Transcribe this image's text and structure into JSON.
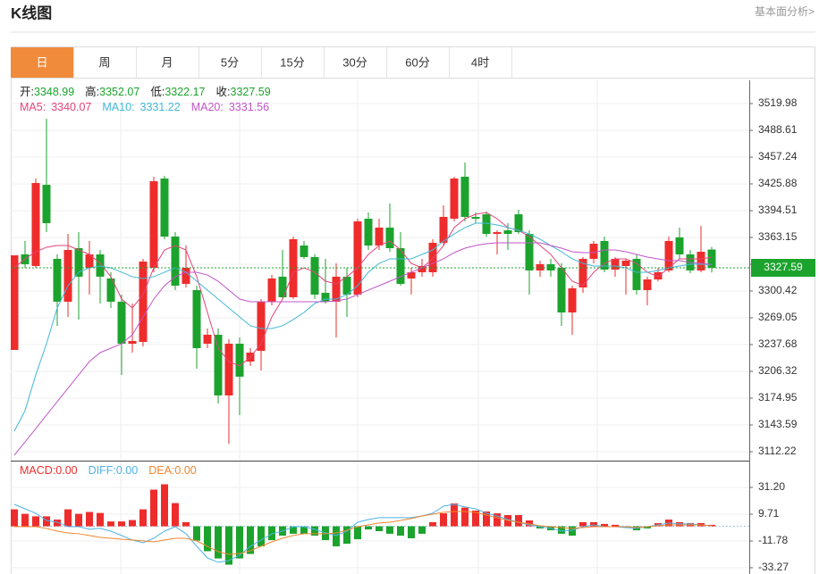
{
  "header": {
    "title": "K线图",
    "link": "基本面分析>"
  },
  "tabs": [
    {
      "label": "日",
      "active": true
    },
    {
      "label": "周",
      "active": false
    },
    {
      "label": "月",
      "active": false
    },
    {
      "label": "5分",
      "active": false
    },
    {
      "label": "15分",
      "active": false
    },
    {
      "label": "30分",
      "active": false
    },
    {
      "label": "60分",
      "active": false
    },
    {
      "label": "4时",
      "active": false
    }
  ],
  "chart_data": [
    {
      "type": "candlestick",
      "quote_labels": {
        "open": "开:",
        "high": "高:",
        "low": "低:",
        "close": "收:"
      },
      "open": [
        3231.4,
        3343.3,
        3329.7,
        3424.8,
        3338.1,
        3287.9,
        3350.6,
        3327.6,
        3343.3,
        3315.1,
        3287.9,
        3238.7,
        3240.8,
        3327.6,
        3432.2,
        3364.2,
        3308.8,
        3301.5,
        3238.7,
        3249.2,
        3178.1,
        3238.7,
        3217.8,
        3230.4,
        3287.9,
        3317.2,
        3293.1,
        3353.7,
        3340.2,
        3298.3,
        3287.9,
        3317.2,
        3296.2,
        3385.1,
        3353.7,
        3374.7,
        3350.6,
        3315.1,
        3322.4,
        3322.4,
        3356.9,
        3385.1,
        3434.3,
        3387.2,
        3390.3,
        3367.3,
        3371.5,
        3390.3,
        3367.3,
        3324.5,
        3331.8,
        3327.6,
        3275.3,
        3304.6,
        3338.1,
        3359.0,
        3325.5,
        3329.7,
        3338.1,
        3301.5,
        3314.0,
        3324.5,
        3363.2,
        3343.3,
        3324.5,
        3348.99
      ],
      "high": [
        3342.2,
        3359.0,
        3432.2,
        3502.2,
        3343.3,
        3367.3,
        3369.4,
        3359.0,
        3348.5,
        3322.4,
        3296.2,
        3285.8,
        3338.1,
        3434.3,
        3435.3,
        3369.4,
        3353.7,
        3306.7,
        3256.5,
        3256.5,
        3244.0,
        3246.1,
        3233.5,
        3291.0,
        3319.2,
        3348.5,
        3364.2,
        3359.0,
        3343.3,
        3338.1,
        3332.8,
        3327.6,
        3385.1,
        3392.4,
        3385.1,
        3402.9,
        3369.4,
        3327.6,
        3338.1,
        3361.1,
        3400.8,
        3434.3,
        3451.0,
        3392.4,
        3393.5,
        3371.5,
        3379.9,
        3395.6,
        3371.5,
        3336.0,
        3338.1,
        3332.8,
        3306.7,
        3340.2,
        3359.0,
        3364.2,
        3340.2,
        3338.1,
        3343.3,
        3317.2,
        3327.6,
        3364.2,
        3374.7,
        3348.5,
        3376.7,
        3352.07
      ],
      "low": [
        3231.4,
        3327.6,
        3327.6,
        3369.4,
        3259.7,
        3270.1,
        3267.0,
        3296.2,
        3285.8,
        3280.6,
        3202.2,
        3228.3,
        3235.6,
        3322.4,
        3361.1,
        3301.5,
        3304.6,
        3209.5,
        3233.5,
        3168.7,
        3121.7,
        3155.1,
        3212.6,
        3207.4,
        3283.7,
        3291.0,
        3291.0,
        3338.1,
        3291.0,
        3285.8,
        3246.1,
        3270.1,
        3293.1,
        3348.5,
        3348.5,
        3346.4,
        3306.7,
        3296.2,
        3317.2,
        3317.2,
        3353.7,
        3382.0,
        3382.0,
        3379.9,
        3364.2,
        3343.3,
        3348.5,
        3367.3,
        3296.2,
        3317.2,
        3317.2,
        3259.7,
        3249.2,
        3298.3,
        3332.8,
        3322.4,
        3317.2,
        3296.2,
        3296.2,
        3283.7,
        3311.9,
        3322.4,
        3338.1,
        3321.3,
        3322.4,
        3322.17
      ],
      "close": [
        3342.2,
        3331.8,
        3426.9,
        3379.9,
        3287.9,
        3348.5,
        3317.2,
        3343.3,
        3317.2,
        3287.9,
        3238.7,
        3241.9,
        3334.9,
        3429.0,
        3364.2,
        3306.7,
        3327.6,
        3233.5,
        3249.2,
        3178.1,
        3238.7,
        3200.1,
        3228.3,
        3287.9,
        3315.1,
        3293.1,
        3361.1,
        3340.2,
        3296.2,
        3287.9,
        3317.2,
        3296.2,
        3382.0,
        3353.7,
        3374.7,
        3350.6,
        3308.8,
        3322.4,
        3329.7,
        3356.9,
        3387.2,
        3432.2,
        3387.2,
        3385.1,
        3367.3,
        3369.4,
        3367.3,
        3369.4,
        3324.5,
        3331.8,
        3324.5,
        3275.3,
        3303.6,
        3338.1,
        3355.8,
        3325.5,
        3338.1,
        3336.0,
        3301.5,
        3314.0,
        3322.4,
        3359.0,
        3343.3,
        3324.5,
        3346.4,
        3327.59
      ],
      "up_color": "#ee2c2c",
      "down_color": "#1ca32d",
      "series": [
        {
          "name": "MA5:",
          "color": "#e2447a",
          "values": [
            3327.6,
            3338.1,
            3346.4,
            3351.7,
            3353.7,
            3353.7,
            3348.5,
            3343.3,
            3332.8,
            3317.2,
            3291.0,
            3280.6,
            3296.2,
            3327.6,
            3348.5,
            3353.7,
            3348.5,
            3317.2,
            3275.3,
            3233.5,
            3217.8,
            3212.6,
            3223.0,
            3238.7,
            3270.1,
            3291.0,
            3322.4,
            3327.6,
            3322.4,
            3311.9,
            3308.8,
            3317.2,
            3327.6,
            3343.3,
            3353.7,
            3359.0,
            3348.5,
            3332.8,
            3327.6,
            3338.1,
            3353.7,
            3374.7,
            3385.1,
            3390.3,
            3392.4,
            3385.1,
            3374.7,
            3371.5,
            3364.2,
            3353.7,
            3343.3,
            3327.6,
            3311.9,
            3306.7,
            3322.4,
            3332.8,
            3338.1,
            3338.1,
            3332.8,
            3322.4,
            3317.2,
            3327.6,
            3338.1,
            3338.1,
            3338.1,
            3340.07
          ]
        },
        {
          "name": "MA10:",
          "color": "#41b8d8",
          "values": [
            3136.3,
            3160.3,
            3202.2,
            3238.7,
            3280.6,
            3306.7,
            3322.4,
            3327.6,
            3329.7,
            3327.6,
            3322.4,
            3317.2,
            3315.1,
            3317.2,
            3322.4,
            3327.6,
            3322.4,
            3311.9,
            3301.5,
            3291.0,
            3280.6,
            3270.1,
            3259.7,
            3256.5,
            3256.5,
            3259.7,
            3267.0,
            3275.3,
            3285.8,
            3291.0,
            3291.0,
            3296.2,
            3306.7,
            3322.4,
            3332.8,
            3338.1,
            3338.1,
            3338.1,
            3343.3,
            3348.5,
            3359.0,
            3367.3,
            3374.7,
            3379.9,
            3379.9,
            3377.8,
            3374.7,
            3371.5,
            3367.3,
            3361.1,
            3353.7,
            3346.4,
            3338.1,
            3332.8,
            3329.7,
            3329.7,
            3329.7,
            3327.6,
            3322.4,
            3322.4,
            3324.5,
            3327.6,
            3329.7,
            3331.8,
            3331.8,
            3331.22
          ]
        },
        {
          "name": "MA20:",
          "color": "#c055c8",
          "values": [
            3108.1,
            3123.7,
            3139.4,
            3155.1,
            3170.8,
            3186.5,
            3202.2,
            3217.8,
            3228.3,
            3233.5,
            3238.7,
            3249.2,
            3270.1,
            3291.0,
            3306.7,
            3317.2,
            3322.4,
            3322.4,
            3319.2,
            3311.9,
            3301.5,
            3291.0,
            3287.9,
            3287.9,
            3287.9,
            3287.9,
            3287.9,
            3287.9,
            3287.9,
            3287.9,
            3288.9,
            3291.0,
            3296.2,
            3301.5,
            3306.7,
            3311.9,
            3317.2,
            3322.4,
            3327.6,
            3332.8,
            3338.1,
            3345.4,
            3350.6,
            3353.7,
            3355.8,
            3356.9,
            3356.9,
            3356.9,
            3356.9,
            3356.9,
            3353.7,
            3350.6,
            3346.4,
            3345.4,
            3345.4,
            3348.5,
            3348.5,
            3346.4,
            3343.3,
            3340.2,
            3338.1,
            3336.0,
            3336.0,
            3333.9,
            3332.8,
            3331.56
          ]
        }
      ],
      "ylim": [
        3101.77,
        3547.16
      ],
      "yticks": [
        3519.98,
        3488.61,
        3457.24,
        3425.88,
        3394.51,
        3363.15,
        3331.78,
        3300.42,
        3269.05,
        3237.68,
        3206.32,
        3174.95,
        3143.59,
        3112.22
      ],
      "grid": true,
      "last_price_line": true
    },
    {
      "type": "macd",
      "up_color": "#ee2c2c",
      "down_color": "#1ca32d",
      "series": [
        {
          "name": "MACD:",
          "legend_label": "0.00",
          "kind": "bar",
          "color": "#ee2c2c",
          "values": [
            13.6,
            10,
            8,
            8,
            5.4,
            13.6,
            10,
            11.5,
            10.7,
            3.9,
            3.9,
            5,
            13.6,
            29.4,
            33.7,
            18.6,
            3.3,
            -11.5,
            -20,
            -25.8,
            -30.8,
            -25.8,
            -22.2,
            -16.1,
            -11.1,
            -7.5,
            -6,
            -6,
            -7.5,
            -11.1,
            -16.1,
            -14,
            -10.4,
            -2.5,
            -3.9,
            -6,
            -7.5,
            -9.6,
            -6,
            3.3,
            10.4,
            18.3,
            15,
            12.6,
            11.9,
            10.4,
            9,
            9,
            4.7,
            -1.7,
            -3.2,
            -6,
            -7.5,
            3.3,
            3.3,
            1.9,
            1.2,
            -1.1,
            -3.2,
            -1.7,
            2.5,
            5.4,
            3.3,
            2.6,
            2.6,
            1.2
          ]
        },
        {
          "name": "DIFF:",
          "legend_label": "0.00",
          "kind": "line",
          "color": "#4db3e8",
          "values": [
            17.6,
            14.0,
            10.5,
            4.7,
            3.3,
            -0.3,
            -0.3,
            -2.4,
            -1.7,
            -3.9,
            -7.4,
            -11.0,
            -13.2,
            -9.6,
            -3.9,
            -0.3,
            -6.0,
            -16.0,
            -25.4,
            -28.9,
            -27.5,
            -23.2,
            -16.0,
            -11.0,
            -6.0,
            -3.9,
            -0.3,
            -0.3,
            -2.4,
            -5.3,
            -7.4,
            -3.9,
            3.3,
            5.4,
            6.9,
            6.9,
            6.9,
            6.9,
            8.3,
            10.5,
            16.2,
            17.6,
            15.5,
            14.0,
            10.5,
            8.3,
            5.4,
            3.3,
            1.1,
            -0.3,
            -1.7,
            -3.9,
            -3.2,
            -0.3,
            1.1,
            -0.3,
            -0.3,
            -1.0,
            -1.7,
            -0.3,
            1.1,
            2.6,
            1.9,
            1.9,
            1.1,
            0.4
          ]
        },
        {
          "name": "DEA:",
          "legend_label": "0.00",
          "kind": "line",
          "color": "#f0862f",
          "values": [
            -0.3,
            -0.3,
            -0.3,
            -1.7,
            -3.9,
            -5.3,
            -6.0,
            -7.4,
            -8.9,
            -9.6,
            -10.3,
            -11.0,
            -11.7,
            -12.5,
            -11.0,
            -9.6,
            -9.6,
            -11.7,
            -16.0,
            -20.3,
            -22.5,
            -21.8,
            -19.6,
            -16.0,
            -12.5,
            -9.6,
            -7.4,
            -6.0,
            -6.0,
            -6.0,
            -5.3,
            -3.2,
            -0.3,
            1.1,
            2.6,
            3.3,
            4.7,
            6.2,
            8.3,
            9.7,
            11.2,
            11.9,
            11.9,
            11.2,
            9.0,
            6.9,
            4.7,
            3.3,
            1.9,
            0.4,
            -0.3,
            -1.0,
            -1.7,
            -1.0,
            -0.3,
            -0.3,
            -0.3,
            -0.3,
            -1.0,
            -0.3,
            0.4,
            1.1,
            1.1,
            1.1,
            1.1,
            0.4
          ]
        }
      ],
      "ylim": [
        -38.28,
        51.26
      ],
      "yticks": [
        {
          "value": 31.2,
          "label": "31.20"
        },
        9.71,
        -11.78,
        -33.27
      ],
      "grid": true
    }
  ]
}
